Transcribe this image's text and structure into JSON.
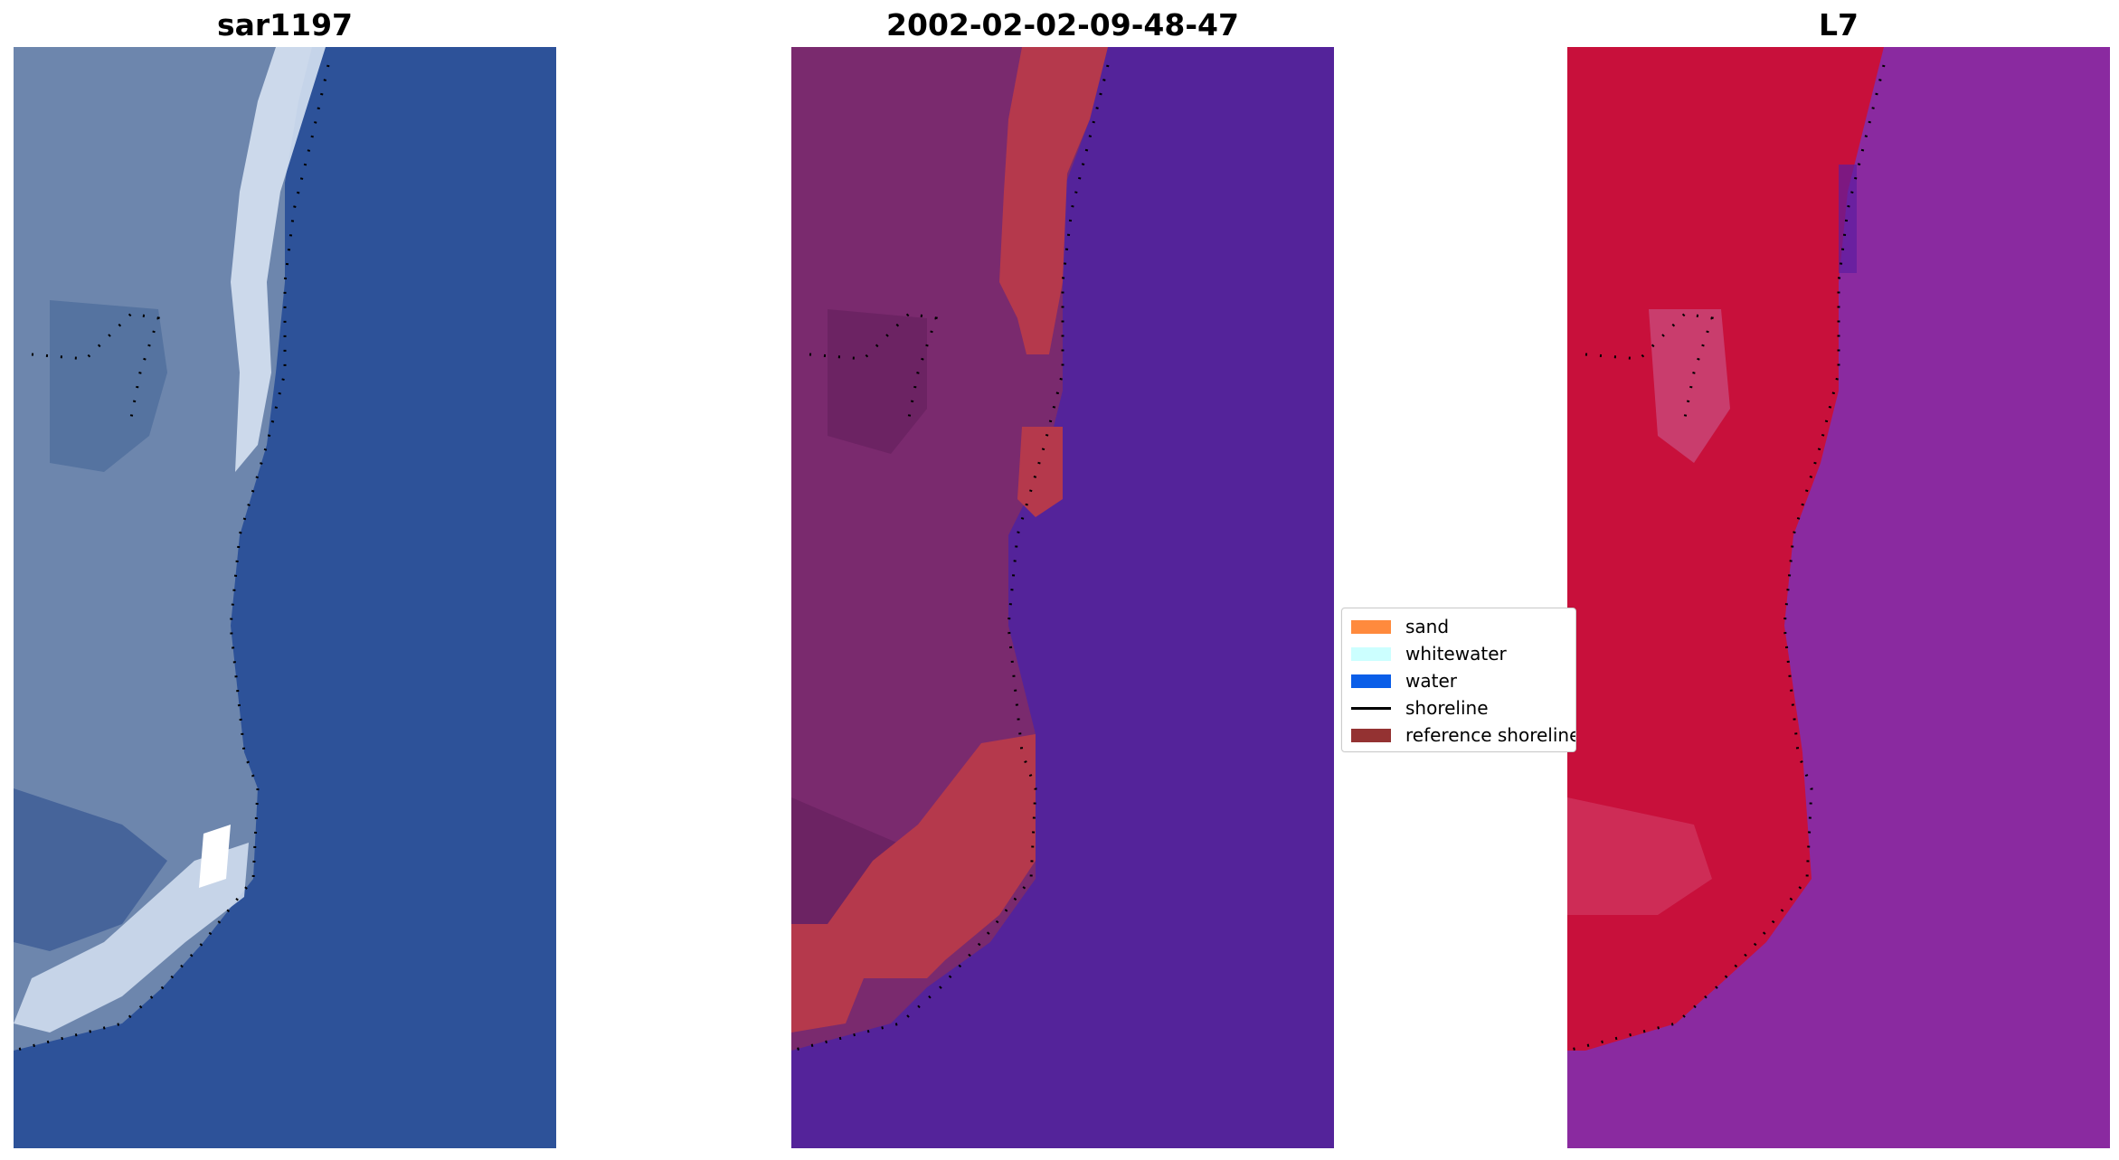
{
  "panels": [
    {
      "title": "sar1197"
    },
    {
      "title": "2002-02-02-09-48-47"
    },
    {
      "title": "L7"
    }
  ],
  "legend": {
    "items": [
      {
        "label": "sand",
        "color": "#ff8a3d",
        "kind": "patch"
      },
      {
        "label": "whitewater",
        "color": "#ccffff",
        "kind": "patch"
      },
      {
        "label": "water",
        "color": "#0a5ee8",
        "kind": "patch"
      },
      {
        "label": "shoreline",
        "color": "#000000",
        "kind": "line"
      },
      {
        "label": "reference shoreline",
        "color": "#943232",
        "kind": "patch"
      }
    ]
  },
  "colors": {
    "rgb_water": "#2d5299",
    "rgb_land": "#6d86ad",
    "rgb_white": "#e8f0ff",
    "class_water": "#54239a",
    "class_land": "#7a2a6e",
    "class_sand_overlay": "#b5394c",
    "mndwi_land": "#c8103b",
    "mndwi_water": "#8a2aa0"
  }
}
